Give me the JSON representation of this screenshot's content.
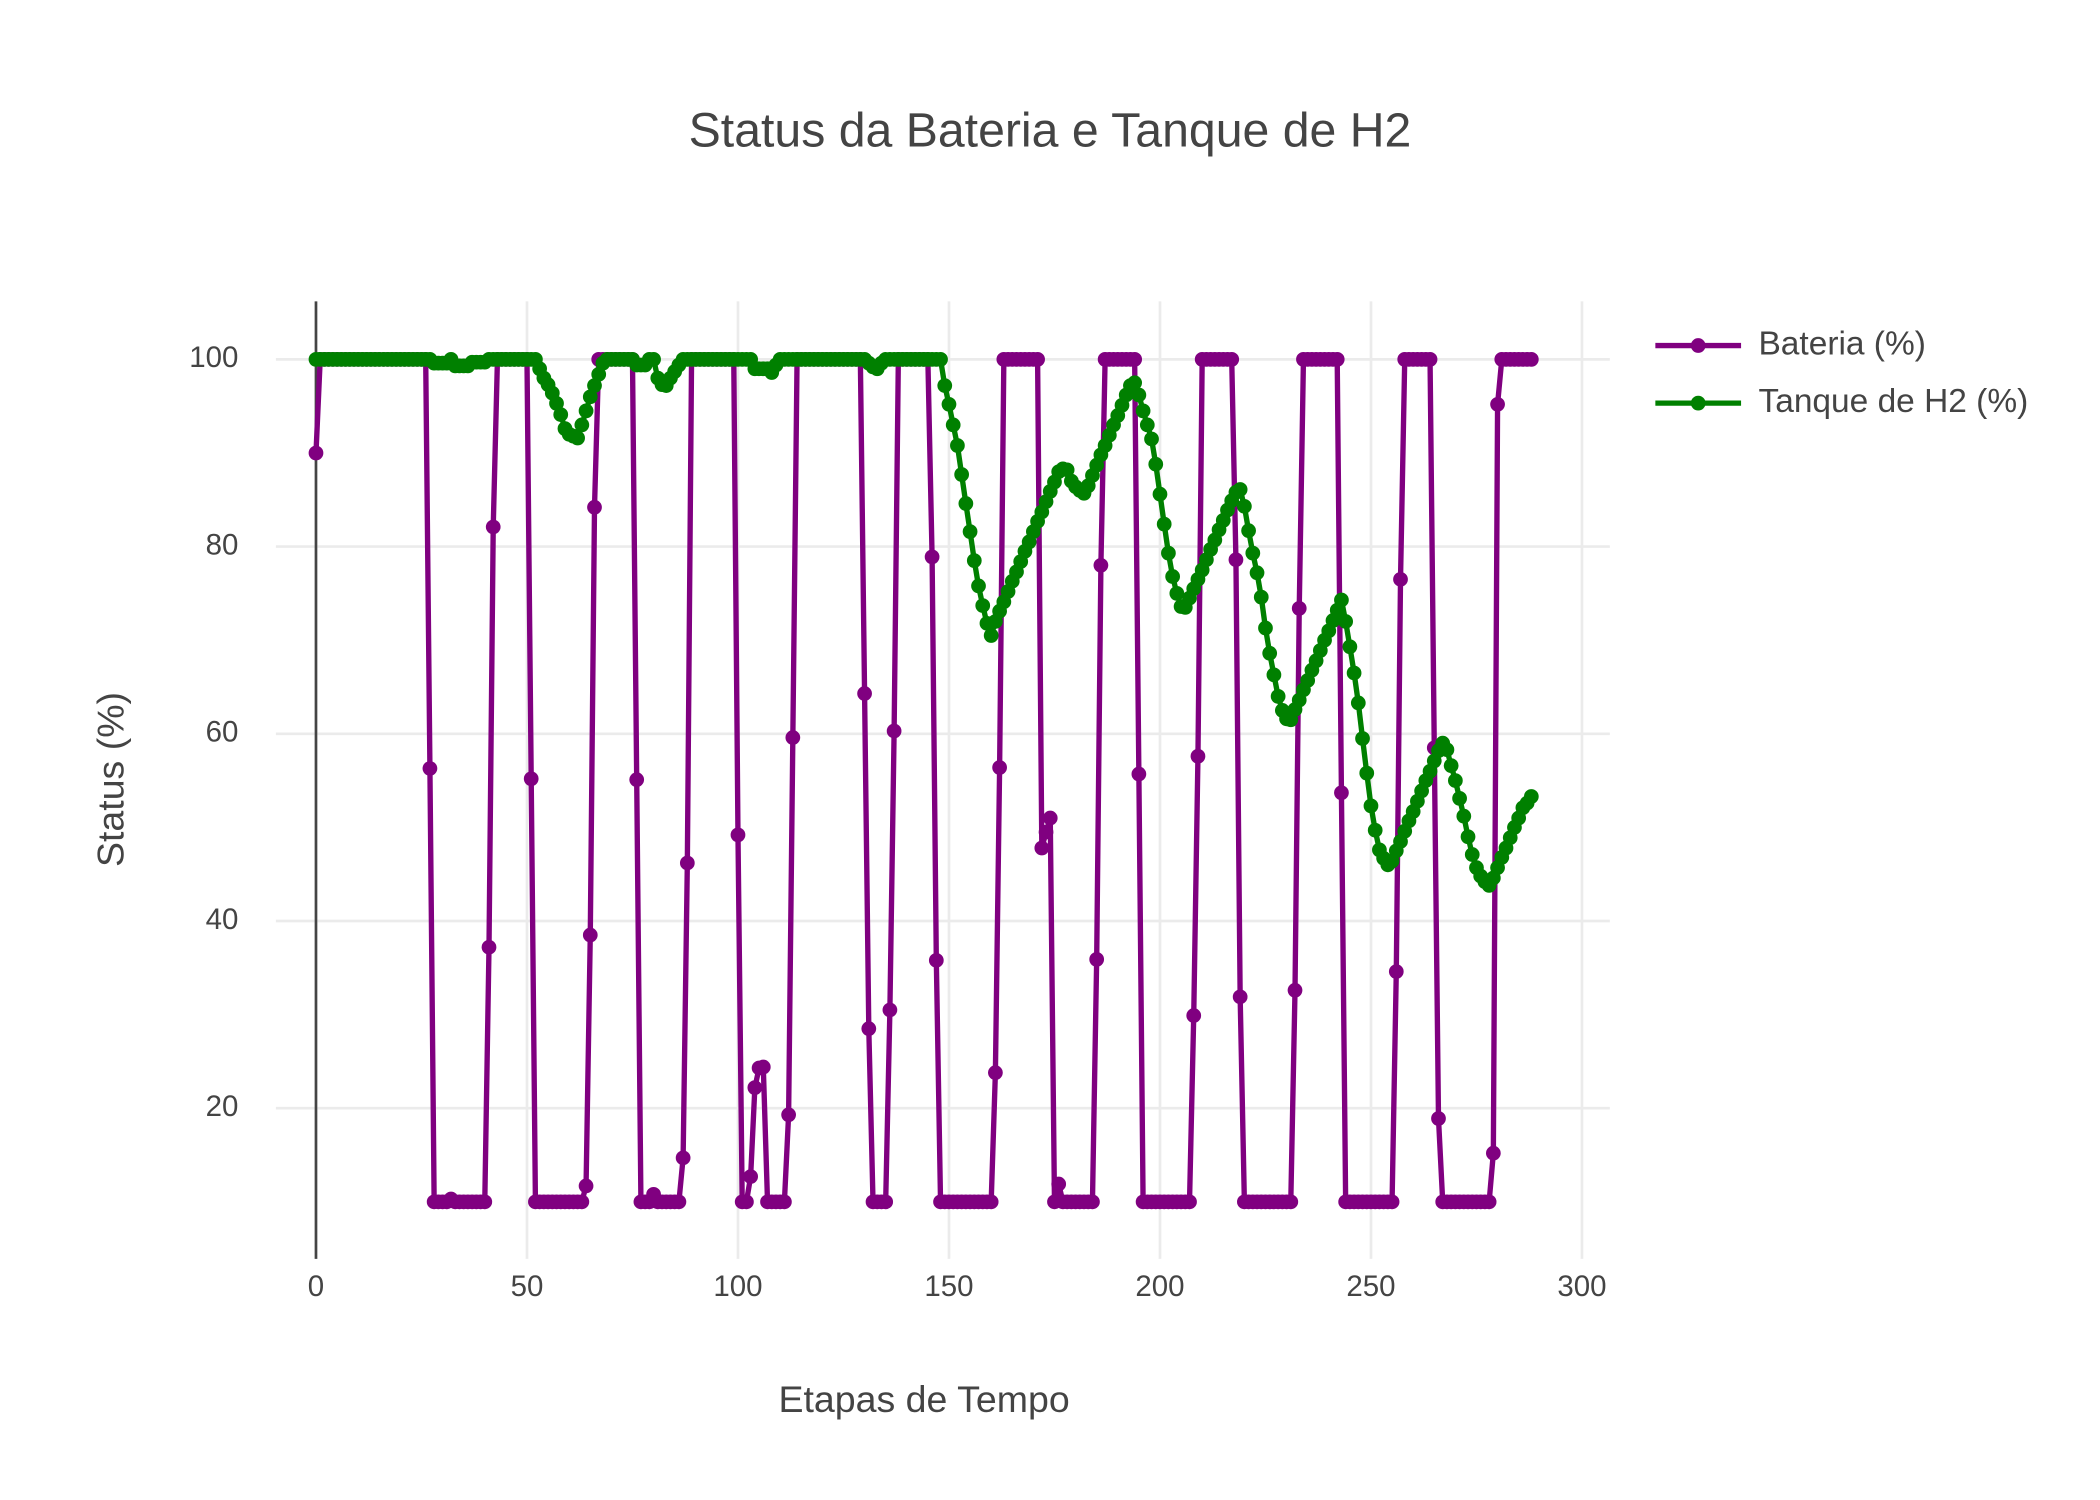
{
  "chart_data": {
    "type": "line",
    "title": "Status da Bateria e Tanque de H2",
    "x_label": "Etapas de Tempo",
    "y_label": "Status (%)",
    "x": [
      0,
      1,
      2,
      3,
      4,
      5,
      6,
      7,
      8,
      9,
      10,
      11,
      12,
      13,
      14,
      15,
      16,
      17,
      18,
      19,
      20,
      21,
      22,
      23,
      24,
      25,
      26,
      27,
      28,
      29,
      30,
      31,
      32,
      33,
      34,
      35,
      36,
      37,
      38,
      39,
      40,
      41,
      42,
      43,
      44,
      45,
      46,
      47,
      48,
      49,
      50,
      51,
      52,
      53,
      54,
      55,
      56,
      57,
      58,
      59,
      60,
      61,
      62,
      63,
      64,
      65,
      66,
      67,
      68,
      69,
      70,
      71,
      72,
      73,
      74,
      75,
      76,
      77,
      78,
      79,
      80,
      81,
      82,
      83,
      84,
      85,
      86,
      87,
      88,
      89,
      90,
      91,
      92,
      93,
      94,
      95,
      96,
      97,
      98,
      99,
      100,
      101,
      102,
      103,
      104,
      105,
      106,
      107,
      108,
      109,
      110,
      111,
      112,
      113,
      114,
      115,
      116,
      117,
      118,
      119,
      120,
      121,
      122,
      123,
      124,
      125,
      126,
      127,
      128,
      129,
      130,
      131,
      132,
      133,
      134,
      135,
      136,
      137,
      138,
      139,
      140,
      141,
      142,
      143,
      144,
      145,
      146,
      147,
      148,
      149,
      150,
      151,
      152,
      153,
      154,
      155,
      156,
      157,
      158,
      159,
      160,
      161,
      162,
      163,
      164,
      165,
      166,
      167,
      168,
      169,
      170,
      171,
      172,
      173,
      174,
      175,
      176,
      177,
      178,
      179,
      180,
      181,
      182,
      183,
      184,
      185,
      186,
      187,
      188,
      189,
      190,
      191,
      192,
      193,
      194,
      195,
      196,
      197,
      198,
      199,
      200,
      201,
      202,
      203,
      204,
      205,
      206,
      207,
      208,
      209,
      210,
      211,
      212,
      213,
      214,
      215,
      216,
      217,
      218,
      219,
      220,
      221,
      222,
      223,
      224,
      225,
      226,
      227,
      228,
      229,
      230,
      231,
      232,
      233,
      234,
      235,
      236,
      237,
      238,
      239,
      240,
      241,
      242,
      243,
      244,
      245,
      246,
      247,
      248,
      249,
      250,
      251,
      252,
      253,
      254,
      255,
      256,
      257,
      258,
      259,
      260,
      261,
      262,
      263,
      264,
      265,
      266,
      267,
      268,
      269,
      270,
      271,
      272,
      273,
      274,
      275,
      276,
      277,
      278,
      279,
      280,
      281,
      282,
      283,
      284,
      285,
      286,
      287,
      288
    ],
    "series": [
      {
        "name": "Bateria (%)",
        "color": "#800080",
        "values": [
          90,
          100,
          100,
          100,
          100,
          100,
          100,
          100,
          100,
          100,
          100,
          100,
          100,
          100,
          100,
          100,
          100,
          100,
          100,
          100,
          100,
          100,
          100,
          100,
          100,
          100,
          100,
          56.3,
          10,
          10,
          10,
          10,
          10.3,
          10,
          10,
          10,
          10,
          10,
          10,
          10,
          10,
          37.2,
          82.1,
          100,
          100,
          100,
          100,
          100,
          100,
          100,
          100,
          55.2,
          10,
          10,
          10,
          10,
          10,
          10,
          10,
          10,
          10,
          10,
          10,
          10,
          11.7,
          38.5,
          84.2,
          100,
          100,
          100,
          100,
          100,
          100,
          100,
          100,
          100,
          55.1,
          10,
          10,
          10,
          10.8,
          10,
          10,
          10,
          10,
          10,
          10,
          14.7,
          46.2,
          100,
          100,
          100,
          100,
          100,
          100,
          100,
          100,
          100,
          100,
          100,
          49.2,
          10,
          10,
          12.7,
          22.2,
          24.3,
          24.4,
          10,
          10,
          10,
          10,
          10,
          19.3,
          59.6,
          100,
          100,
          100,
          100,
          100,
          100,
          100,
          100,
          100,
          100,
          100,
          100,
          100,
          100,
          100,
          100,
          64.3,
          28.5,
          10,
          10,
          10,
          10,
          30.5,
          60.3,
          100,
          100,
          100,
          100,
          100,
          100,
          100,
          100,
          78.9,
          35.8,
          10,
          10,
          10,
          10,
          10,
          10,
          10,
          10,
          10,
          10,
          10,
          10,
          10,
          23.8,
          56.4,
          100,
          100,
          100,
          100,
          100,
          100,
          100,
          100,
          100,
          47.8,
          49.5,
          51,
          10,
          11.9,
          10,
          10,
          10,
          10,
          10,
          10,
          10,
          10,
          35.9,
          78,
          100,
          100,
          100,
          100,
          100,
          100,
          100,
          100,
          55.7,
          10,
          10,
          10,
          10,
          10,
          10,
          10,
          10,
          10,
          10,
          10,
          10,
          29.9,
          57.6,
          100,
          100,
          100,
          100,
          100,
          100,
          100,
          100,
          78.6,
          31.9,
          10,
          10,
          10,
          10,
          10,
          10,
          10,
          10,
          10,
          10,
          10,
          10,
          32.6,
          73.4,
          100,
          100,
          100,
          100,
          100,
          100,
          100,
          100,
          100,
          53.7,
          10,
          10,
          10,
          10,
          10,
          10,
          10,
          10,
          10,
          10,
          10,
          10,
          34.6,
          76.5,
          100,
          100,
          100,
          100,
          100,
          100,
          100,
          58.5,
          18.9,
          10,
          10,
          10,
          10,
          10,
          10,
          10,
          10,
          10,
          10,
          10,
          10,
          15.2,
          95.2,
          100,
          100,
          100,
          100,
          100,
          100,
          100,
          100
        ]
      },
      {
        "name": "Tanque de H2 (%)",
        "color": "#008000",
        "values": [
          100,
          100,
          100,
          100,
          100,
          100,
          100,
          100,
          100,
          100,
          100,
          100,
          100,
          100,
          100,
          100,
          100,
          100,
          100,
          100,
          100,
          100,
          100,
          100,
          100,
          100,
          100,
          100,
          99.6,
          99.6,
          99.6,
          99.6,
          100,
          99.3,
          99.3,
          99.3,
          99.3,
          99.7,
          99.7,
          99.7,
          99.7,
          100,
          100,
          100,
          100,
          100,
          100,
          100,
          100,
          100,
          100,
          100,
          100,
          99,
          98,
          97.3,
          96.4,
          95.3,
          94.1,
          92.6,
          92,
          91.8,
          91.6,
          93,
          94.5,
          96,
          97.2,
          98.4,
          99.6,
          100,
          100,
          100,
          100,
          100,
          100,
          100,
          99.4,
          99.4,
          99.4,
          100,
          100,
          98,
          97.3,
          97.2,
          98,
          98.7,
          99.4,
          100,
          100,
          100,
          100,
          100,
          100,
          100,
          100,
          100,
          100,
          100,
          100,
          100,
          100,
          100,
          100,
          100,
          99,
          99,
          99,
          99,
          98.6,
          99.4,
          100,
          100,
          100,
          100,
          100,
          100,
          100,
          100,
          100,
          100,
          100,
          100,
          100,
          100,
          100,
          100,
          100,
          100,
          100,
          100,
          100,
          99.6,
          99.2,
          99,
          99.6,
          100,
          100,
          100,
          100,
          100,
          100,
          100,
          100,
          100,
          100,
          100,
          100,
          100,
          100,
          97.2,
          95.2,
          93,
          90.8,
          87.7,
          84.6,
          81.6,
          78.5,
          75.8,
          73.7,
          71.8,
          70.5,
          72,
          73.1,
          74.1,
          75.2,
          76.3,
          77.3,
          78.4,
          79.5,
          80.5,
          81.6,
          82.7,
          83.7,
          84.8,
          85.9,
          86.9,
          88,
          88.3,
          88.2,
          87,
          86.4,
          86,
          85.7,
          86.5,
          87.6,
          88.7,
          89.8,
          90.8,
          91.9,
          93,
          94,
          95.1,
          96.2,
          97.2,
          97.5,
          96.2,
          94.5,
          93,
          91.5,
          88.8,
          85.6,
          82.4,
          79.3,
          76.8,
          75,
          73.6,
          73.5,
          74.5,
          75.5,
          76.5,
          77.5,
          78.6,
          79.7,
          80.7,
          81.8,
          82.8,
          83.9,
          84.9,
          85.8,
          86.1,
          84.3,
          81.7,
          79.3,
          77.2,
          74.6,
          71.3,
          68.6,
          66.3,
          64,
          62.5,
          61.6,
          61.5,
          62.6,
          63.6,
          64.7,
          65.7,
          66.8,
          67.8,
          68.9,
          70,
          71,
          72.1,
          73.2,
          74.3,
          72,
          69.3,
          66.5,
          63.3,
          59.5,
          55.8,
          52.3,
          49.7,
          47.6,
          46.7,
          46,
          46.4,
          47.5,
          48.5,
          49.6,
          50.7,
          51.7,
          52.8,
          53.9,
          55,
          56,
          57.1,
          58.2,
          59,
          58.3,
          56.6,
          55,
          53.1,
          51.2,
          49,
          47.1,
          45.7,
          44.8,
          44.2,
          43.8,
          44.6,
          45.7,
          46.8,
          47.8,
          48.9,
          50,
          51,
          52.1,
          52.6,
          53.3
        ]
      }
    ],
    "xlim": [
      -9.5,
      306.6
    ],
    "xticks": [
      0,
      50,
      100,
      150,
      200,
      250,
      300
    ],
    "ylim": [
      3.9,
      106.2
    ],
    "yticks": [
      20,
      40,
      60,
      80,
      100
    ],
    "grid": true
  }
}
